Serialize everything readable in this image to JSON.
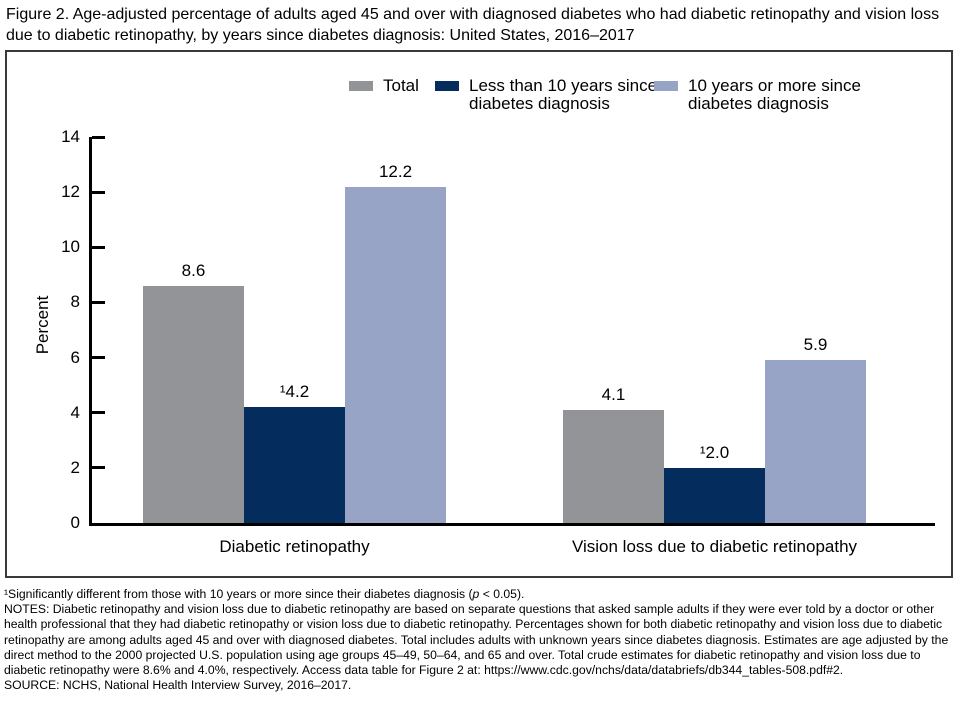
{
  "figure": {
    "title": "Figure 2. Age-adjusted percentage of adults aged 45 and over with diagnosed diabetes who had diabetic retinopathy and vision loss due to diabetic retinopathy, by years since diabetes diagnosis: United States, 2016–2017"
  },
  "chart_data": {
    "type": "bar",
    "categories": [
      "Diabetic retinopathy",
      "Vision loss due to diabetic retinopathy"
    ],
    "series": [
      {
        "name": "Total",
        "color": "#929497",
        "values": [
          8.6,
          4.1
        ],
        "bar_labels": [
          "8.6",
          "4.1"
        ]
      },
      {
        "name": "Less than 10 years since diabetes diagnosis",
        "color": "#042c5c",
        "values": [
          4.2,
          2.0
        ],
        "bar_labels": [
          "¹4.2",
          "¹2.0"
        ]
      },
      {
        "name": "10 years or more since diabetes diagnosis",
        "color": "#98a4c6",
        "values": [
          12.2,
          5.9
        ],
        "bar_labels": [
          "12.2",
          "5.9"
        ]
      }
    ],
    "title": "",
    "xlabel": "",
    "ylabel": "Percent",
    "ylim": [
      0,
      14
    ],
    "yticks": [
      0,
      2,
      4,
      6,
      8,
      10,
      12,
      14
    ],
    "grid": false,
    "legend_position": "top inside plot frame"
  },
  "legend": {
    "items": [
      {
        "label": "Total",
        "color": "#929497"
      },
      {
        "label": "Less than 10 years since\ndiabetes diagnosis",
        "color": "#042c5c"
      },
      {
        "label": "10 years or more since\ndiabetes diagnosis",
        "color": "#98a4c6"
      }
    ]
  },
  "footnotes": {
    "sig_prefix": "¹Significantly different from those with 10 years or more since their diabetes diagnosis (",
    "sig_italic": "p",
    "sig_suffix": " < 0.05).",
    "notes": "NOTES: Diabetic retinopathy and vision loss due to diabetic retinopathy are based on separate questions that asked sample adults if they were ever told by a doctor or other health professional that they had diabetic retinopathy or vision loss due to diabetic retinopathy. Percentages shown for both diabetic retinopathy and vision loss due to diabetic retinopathy are among adults aged 45 and over with diagnosed diabetes. Total includes adults with unknown years since diabetes diagnosis. Estimates are age adjusted by the direct method to the 2000 projected U.S. population using age groups 45–49, 50–64, and 65 and over. Total crude estimates for diabetic retinopathy and vision loss due to diabetic retinopathy were 8.6% and 4.0%, respectively. Access data table for Figure 2 at: https://www.cdc.gov/nchs/data/databriefs/db344_tables-508.pdf#2.",
    "source": "SOURCE: NCHS, National Health Interview Survey, 2016–2017."
  }
}
